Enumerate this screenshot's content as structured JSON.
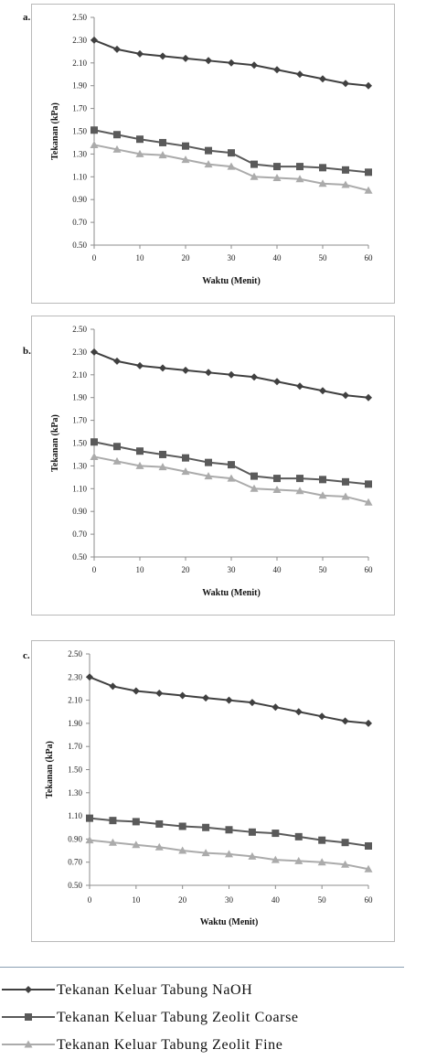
{
  "legend": {
    "items": [
      {
        "label": "Tekanan Keluar Tabung NaOH",
        "color": "#404040",
        "marker": "diamond"
      },
      {
        "label": "Tekanan Keluar Tabung Zeolit Coarse",
        "color": "#5a5a5a",
        "marker": "square"
      },
      {
        "label": "Tekanan Keluar Tabung Zeolit Fine",
        "color": "#ababab",
        "marker": "triangle"
      }
    ]
  },
  "chart_data": [
    {
      "panel_label": "a.",
      "type": "line",
      "xlabel": "Waktu (Menit)",
      "ylabel": "Tekanan (kPa)",
      "x": [
        0,
        5,
        10,
        15,
        20,
        25,
        30,
        35,
        40,
        45,
        50,
        55,
        60
      ],
      "x_ticks": [
        "0",
        "10",
        "20",
        "30",
        "40",
        "50",
        "60"
      ],
      "y_ticks": [
        "0.50",
        "0.70",
        "0.90",
        "1.10",
        "1.30",
        "1.50",
        "1.70",
        "1.90",
        "2.10",
        "2.30",
        "2.50"
      ],
      "xlim": [
        0,
        60
      ],
      "ylim": [
        0.5,
        2.5
      ],
      "grid": false,
      "series": [
        {
          "name": "Tekanan Keluar Tabung NaOH",
          "color": "#404040",
          "marker": "diamond",
          "values": [
            2.3,
            2.22,
            2.18,
            2.16,
            2.14,
            2.12,
            2.1,
            2.08,
            2.04,
            2.0,
            1.96,
            1.92,
            1.9
          ]
        },
        {
          "name": "Tekanan Keluar Tabung Zeolit Coarse",
          "color": "#5a5a5a",
          "marker": "square",
          "values": [
            1.51,
            1.47,
            1.43,
            1.4,
            1.37,
            1.33,
            1.31,
            1.21,
            1.19,
            1.19,
            1.18,
            1.16,
            1.14
          ]
        },
        {
          "name": "Tekanan Keluar Tabung Zeolit Fine",
          "color": "#ababab",
          "marker": "triangle",
          "values": [
            1.38,
            1.34,
            1.3,
            1.29,
            1.25,
            1.21,
            1.19,
            1.1,
            1.09,
            1.08,
            1.04,
            1.03,
            0.98
          ]
        }
      ]
    },
    {
      "panel_label": "b.",
      "type": "line",
      "xlabel": "Waktu (Menit)",
      "ylabel": "Tekanan (kPa)",
      "x": [
        0,
        5,
        10,
        15,
        20,
        25,
        30,
        35,
        40,
        45,
        50,
        55,
        60
      ],
      "x_ticks": [
        "0",
        "10",
        "20",
        "30",
        "40",
        "50",
        "60"
      ],
      "y_ticks": [
        "0.50",
        "0.70",
        "0.90",
        "1.10",
        "1.30",
        "1.50",
        "1.70",
        "1.90",
        "2.10",
        "2.30",
        "2.50"
      ],
      "xlim": [
        0,
        60
      ],
      "ylim": [
        0.5,
        2.5
      ],
      "grid": false,
      "series": [
        {
          "name": "Tekanan Keluar Tabung NaOH",
          "color": "#404040",
          "marker": "diamond",
          "values": [
            2.3,
            2.22,
            2.18,
            2.16,
            2.14,
            2.12,
            2.1,
            2.08,
            2.04,
            2.0,
            1.96,
            1.92,
            1.9
          ]
        },
        {
          "name": "Tekanan Keluar Tabung Zeolit Coarse",
          "color": "#5a5a5a",
          "marker": "square",
          "values": [
            1.51,
            1.47,
            1.43,
            1.4,
            1.37,
            1.33,
            1.31,
            1.21,
            1.19,
            1.19,
            1.18,
            1.16,
            1.14
          ]
        },
        {
          "name": "Tekanan Keluar Tabung Zeolit Fine",
          "color": "#ababab",
          "marker": "triangle",
          "values": [
            1.38,
            1.34,
            1.3,
            1.29,
            1.25,
            1.21,
            1.19,
            1.1,
            1.09,
            1.08,
            1.04,
            1.03,
            0.98
          ]
        }
      ]
    },
    {
      "panel_label": "c.",
      "type": "line",
      "xlabel": "Waktu (Menit)",
      "ylabel": "Tekanan (kPa)",
      "x": [
        0,
        5,
        10,
        15,
        20,
        25,
        30,
        35,
        40,
        45,
        50,
        55,
        60
      ],
      "x_ticks": [
        "0",
        "10",
        "20",
        "30",
        "40",
        "50",
        "60"
      ],
      "y_ticks": [
        "0.50",
        "0.70",
        "0.90",
        "1.10",
        "1.30",
        "1.50",
        "1.70",
        "1.90",
        "2.10",
        "2.30",
        "2.50"
      ],
      "xlim": [
        0,
        60
      ],
      "ylim": [
        0.5,
        2.5
      ],
      "grid": false,
      "series": [
        {
          "name": "Tekanan Keluar Tabung NaOH",
          "color": "#404040",
          "marker": "diamond",
          "values": [
            2.3,
            2.22,
            2.18,
            2.16,
            2.14,
            2.12,
            2.1,
            2.08,
            2.04,
            2.0,
            1.96,
            1.92,
            1.9
          ]
        },
        {
          "name": "Tekanan Keluar Tabung Zeolit Coarse",
          "color": "#5a5a5a",
          "marker": "square",
          "values": [
            1.08,
            1.06,
            1.05,
            1.03,
            1.01,
            1.0,
            0.98,
            0.96,
            0.95,
            0.92,
            0.89,
            0.87,
            0.84
          ]
        },
        {
          "name": "Tekanan Keluar Tabung Zeolit Fine",
          "color": "#ababab",
          "marker": "triangle",
          "values": [
            0.89,
            0.87,
            0.85,
            0.83,
            0.8,
            0.78,
            0.77,
            0.75,
            0.72,
            0.71,
            0.7,
            0.68,
            0.64
          ]
        }
      ]
    }
  ]
}
